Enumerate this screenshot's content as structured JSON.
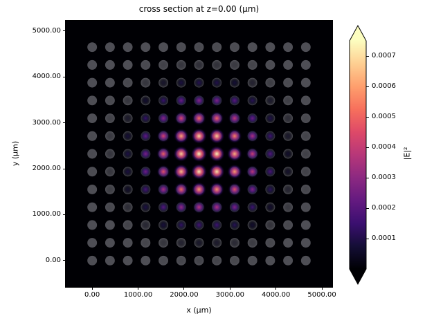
{
  "chart_data": {
    "type": "heatmap",
    "title": "cross section at z=0.00 (μm)",
    "xlabel": "x (μm)",
    "ylabel": "y (μm)",
    "xlim": [
      -575,
      5225
    ],
    "ylim": [
      -575,
      5225
    ],
    "x_tick_values": [
      0,
      1000,
      2000,
      3000,
      4000,
      5000
    ],
    "x_tick_labels": [
      "0.00",
      "1000.00",
      "2000.00",
      "3000.00",
      "4000.00",
      "5000.00"
    ],
    "y_tick_values": [
      0,
      1000,
      2000,
      3000,
      4000,
      5000
    ],
    "y_tick_labels": [
      "0.00",
      "1000.00",
      "2000.00",
      "3000.00",
      "4000.00",
      "5000.00"
    ],
    "colormap": "magma",
    "background_color": "#000004",
    "lattice": {
      "nx": 13,
      "ny": 13,
      "pitch_um": 387.5,
      "x0_um": 0,
      "y0_um": 0,
      "site_radius_um": 105,
      "site_overlay_color_rgb": [
        130,
        130,
        140
      ],
      "site_overlay_alpha": 0.6
    },
    "field": {
      "model": "supergaussian-envelope",
      "center_x_um": 2450,
      "center_y_um": 2250,
      "sigma_um": 900,
      "supergaussian_p": 1.3,
      "peak_abs_E2": 0.00075
    },
    "colorbar": {
      "label": "|E|²",
      "vmin": 0,
      "vmax": 0.00075,
      "tick_values": [
        0.0001,
        0.0002,
        0.0003,
        0.0004,
        0.0005,
        0.0006,
        0.0007
      ],
      "tick_labels": [
        "0.0001",
        "0.0002",
        "0.0003",
        "0.0004",
        "0.0005",
        "0.0006",
        "0.0007"
      ],
      "extend": "both"
    }
  }
}
